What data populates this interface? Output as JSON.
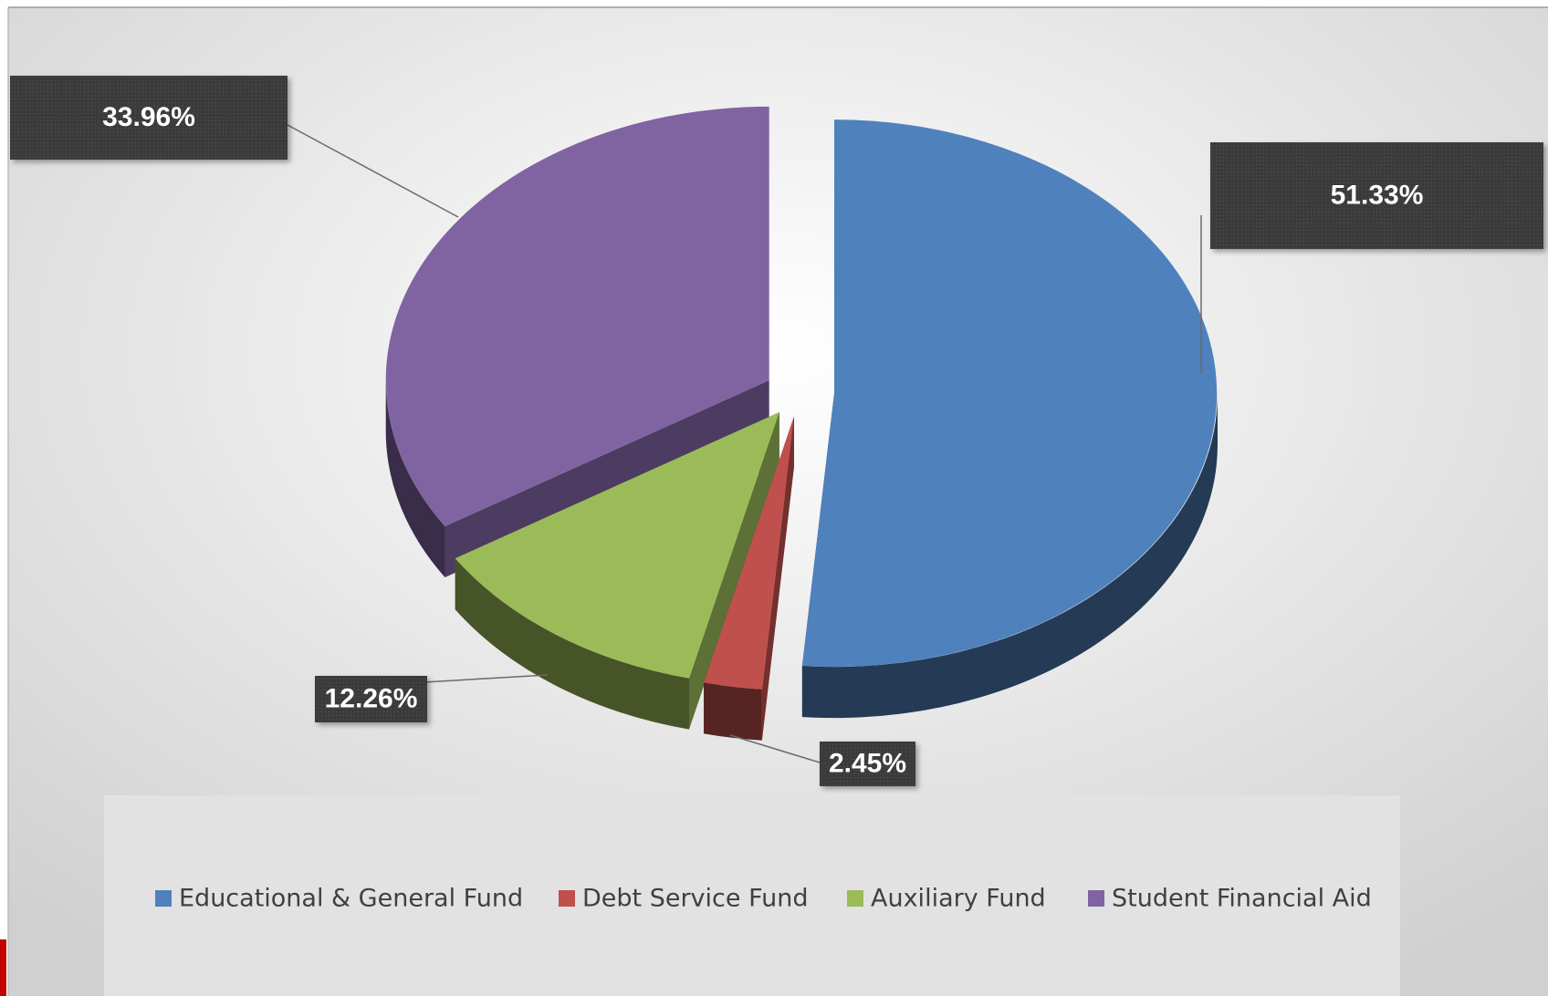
{
  "chart_data": {
    "type": "pie",
    "three_d": true,
    "exploded": true,
    "categories": [
      "Educational & General Fund",
      "Debt Service Fund",
      "Auxiliary Fund",
      "Student Financial Aid"
    ],
    "values": [
      51.33,
      2.45,
      12.26,
      33.96
    ],
    "value_labels": [
      "51.33%",
      "2.45%",
      "12.26%",
      "33.96%"
    ],
    "colors": [
      "#4f81bd",
      "#c0504d",
      "#9bbb59",
      "#8064a2"
    ],
    "legend": "bottom"
  }
}
